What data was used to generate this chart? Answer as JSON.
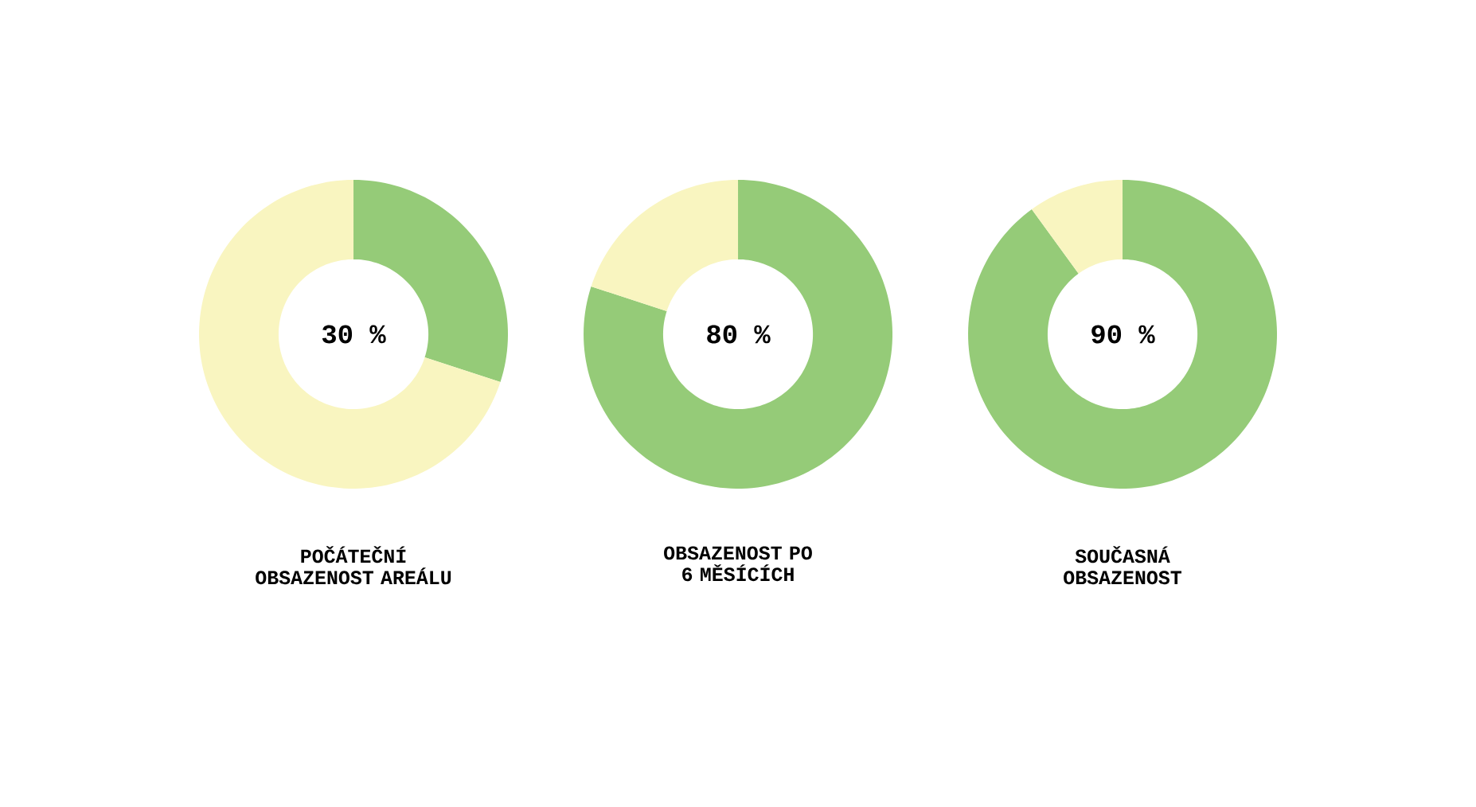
{
  "chart_data": [
    {
      "type": "donut",
      "title": "POČÁTEČNÍ OBSAZENOST AREÁLU",
      "categories": [
        null,
        null
      ],
      "values": [
        30,
        70
      ],
      "colors": [
        "#95cb78",
        "#f9f5c0"
      ],
      "value_labels": [
        "30 %",
        null
      ]
    },
    {
      "type": "donut",
      "title": "OBSAZENOST PO 6 MĚSÍCÍCH",
      "categories": [
        null,
        null
      ],
      "values": [
        80,
        20
      ],
      "colors": [
        "#95cb78",
        "#f9f5c0"
      ],
      "value_labels": [
        "80 %",
        null
      ]
    },
    {
      "type": "donut",
      "title": "SOUČASNÁ OBSAZENOST",
      "categories": [
        null,
        null
      ],
      "values": [
        90,
        10
      ],
      "colors": [
        "#95cb78",
        "#f9f5c0"
      ],
      "value_labels": [
        "90 %",
        null
      ]
    }
  ]
}
